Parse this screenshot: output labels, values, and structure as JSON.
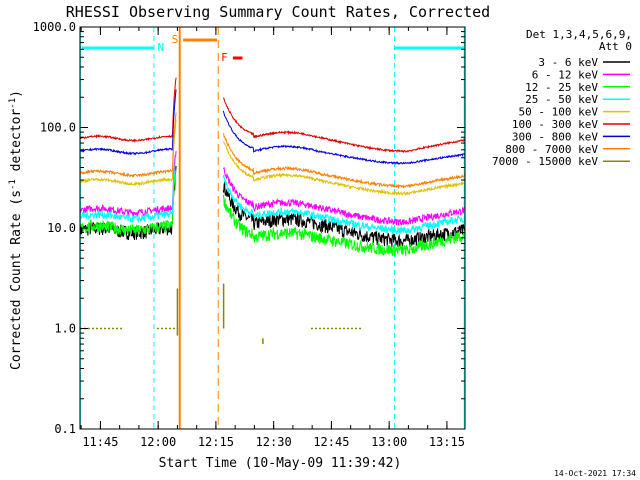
{
  "chart_data": {
    "type": "line",
    "title": "RHESSI Observing Summary Count Rates, Corrected",
    "xlabel": "Start Time (10-May-09 11:39:42)",
    "ylabel_main": "Corrected Count Rate (s",
    "ylabel_sup1": "-1",
    "ylabel_mid": " detector",
    "ylabel_sup2": "-1",
    "ylabel_end": ")",
    "y_scale": "log",
    "ylim": [
      0.1,
      1000
    ],
    "xlim_minutes": [
      0,
      100
    ],
    "x_ticks": [
      {
        "label": "11:45",
        "t": 5.3
      },
      {
        "label": "12:00",
        "t": 20.3
      },
      {
        "label": "12:15",
        "t": 35.3
      },
      {
        "label": "12:30",
        "t": 50.3
      },
      {
        "label": "12:45",
        "t": 65.3
      },
      {
        "label": "13:00",
        "t": 80.3
      },
      {
        "label": "13:15",
        "t": 95.3
      }
    ],
    "y_ticks": [
      {
        "label": "1000.0",
        "v": 1000
      },
      {
        "label": "100.0",
        "v": 100
      },
      {
        "label": "10.0",
        "v": 10
      },
      {
        "label": "1.0",
        "v": 1
      },
      {
        "label": "0.1",
        "v": 0.1
      }
    ],
    "legend_header": "Det 1,3,4,5,6,9,",
    "legend_subheader": "Att 0",
    "series": [
      {
        "name": "3 - 6 keV",
        "color": "#000000",
        "pre": 9.5,
        "post": 11,
        "min": 7.5,
        "end": 9.5,
        "noise": 0.16
      },
      {
        "name": "6 - 12 keV",
        "color": "#ff00ff",
        "pre": 15,
        "post": 16,
        "min": 11.5,
        "end": 15,
        "noise": 0.08
      },
      {
        "name": "12 - 25 keV",
        "color": "#00ff00",
        "pre": 10,
        "post": 8,
        "min": 6,
        "end": 8.5,
        "noise": 0.14
      },
      {
        "name": "25 - 50 keV",
        "color": "#00ffff",
        "pre": 13,
        "post": 13,
        "min": 9.5,
        "end": 12.5,
        "noise": 0.09
      },
      {
        "name": "50 - 100 keV",
        "color": "#e0c000",
        "pre": 29,
        "post": 30,
        "min": 22,
        "end": 28,
        "noise": 0.03
      },
      {
        "name": "100 - 300 keV",
        "color": "#dd0000",
        "pre": 78,
        "post": 80,
        "min": 58,
        "end": 75,
        "noise": 0.02
      },
      {
        "name": "300 - 800 keV",
        "color": "#0000dd",
        "pre": 58,
        "post": 58,
        "min": 44,
        "end": 54,
        "noise": 0.02
      },
      {
        "name": "800 - 7000 keV",
        "color": "#ff8000",
        "pre": 35,
        "post": 35,
        "min": 26,
        "end": 33,
        "noise": 0.03
      },
      {
        "name": "7000 - 15000 keV",
        "color": "#888800",
        "pre": 1,
        "post": 1,
        "min": 1,
        "end": 1,
        "noise": 0
      }
    ],
    "saa_flag_label": "S",
    "night_flag_label": "N",
    "flare_flag_label": "F",
    "timestamp": "14-Oct-2021 17:34"
  },
  "colors": {
    "saa": "#00ffff",
    "night": "#ff8000",
    "flare": "#ff0000",
    "axis": "#000000"
  }
}
